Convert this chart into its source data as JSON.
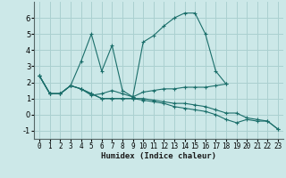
{
  "xlabel": "Humidex (Indice chaleur)",
  "x": [
    0,
    1,
    2,
    3,
    4,
    5,
    6,
    7,
    8,
    9,
    10,
    11,
    12,
    13,
    14,
    15,
    16,
    17,
    18,
    19,
    20,
    21,
    22,
    23
  ],
  "lines": [
    {
      "y": [
        2.4,
        1.3,
        1.3,
        1.8,
        3.3,
        5.0,
        2.7,
        4.3,
        1.5,
        1.1,
        4.5,
        4.9,
        5.5,
        6.0,
        6.3,
        6.3,
        5.0,
        2.7,
        1.9,
        null,
        null,
        null,
        null,
        null
      ]
    },
    {
      "y": [
        2.4,
        1.3,
        1.3,
        1.8,
        1.6,
        1.2,
        1.3,
        1.5,
        1.3,
        1.1,
        1.4,
        1.5,
        1.6,
        1.6,
        1.7,
        1.7,
        1.7,
        1.8,
        1.9,
        null,
        null,
        null,
        null,
        null
      ]
    },
    {
      "y": [
        2.4,
        1.3,
        1.3,
        1.8,
        1.6,
        1.3,
        1.0,
        1.0,
        1.0,
        1.0,
        1.0,
        0.9,
        0.8,
        0.7,
        0.7,
        0.6,
        0.5,
        0.3,
        0.1,
        0.1,
        -0.2,
        -0.3,
        -0.4,
        -0.9
      ]
    },
    {
      "y": [
        2.4,
        1.3,
        1.3,
        1.8,
        1.6,
        1.3,
        1.0,
        1.0,
        1.0,
        1.0,
        0.9,
        0.8,
        0.7,
        0.5,
        0.4,
        0.3,
        0.2,
        0.0,
        -0.3,
        -0.5,
        -0.3,
        -0.4,
        -0.4,
        -0.9
      ]
    }
  ],
  "background_color": "#cce8e8",
  "grid_color": "#aad0d0",
  "line_color": "#1a6e6a",
  "ylim": [
    -1.5,
    7.0
  ],
  "xlim": [
    -0.5,
    23.5
  ],
  "yticks": [
    -1,
    0,
    1,
    2,
    3,
    4,
    5,
    6
  ],
  "xticks": [
    0,
    1,
    2,
    3,
    4,
    5,
    6,
    7,
    8,
    9,
    10,
    11,
    12,
    13,
    14,
    15,
    16,
    17,
    18,
    19,
    20,
    21,
    22,
    23
  ],
  "xlabel_fontsize": 6.5,
  "tick_fontsize": 5.5,
  "marker": "+"
}
